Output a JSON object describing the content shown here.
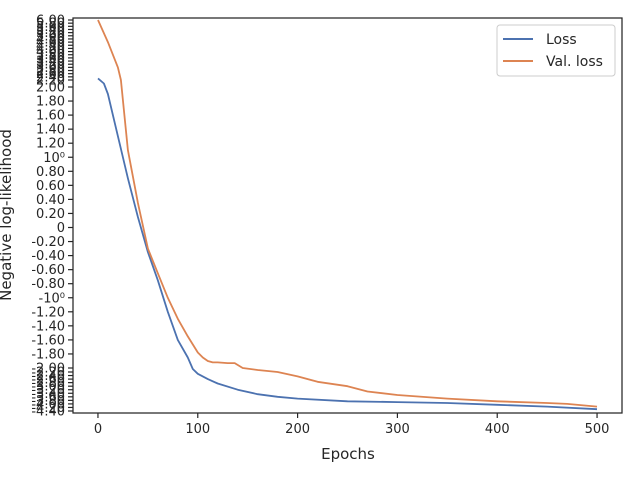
{
  "chart_data": {
    "type": "line",
    "xlabel": "Epochs",
    "ylabel": "Negative log-likelihood",
    "xlim": [
      -25,
      525
    ],
    "xticks": [
      0,
      100,
      200,
      300,
      400,
      500
    ],
    "yscale": "symlog",
    "legend_position": "top-right",
    "grid": false,
    "y_tick_labels_linear": [
      "2.00",
      "1.80",
      "1.60",
      "1.40",
      "1.20",
      "10⁰",
      "0.80",
      "0.60",
      "0.40",
      "0.20",
      "0",
      "-0.20",
      "-0.40",
      "-0.60",
      "-0.80",
      "-10⁰",
      "-1.20",
      "-1.40",
      "-1.60",
      "-1.80",
      "-2.00"
    ],
    "y_tick_labels_upper": [
      "6.00",
      "5.80",
      "5.60",
      "5.40",
      "5.20",
      "5.00",
      "4.80",
      "4.60",
      "4.40",
      "4.20",
      "4.00",
      "3.80",
      "3.60",
      "3.40",
      "3.20",
      "3.00",
      "2.80",
      "2.60",
      "2.40",
      "2.20"
    ],
    "y_tick_labels_lower": [
      "-2.20",
      "-2.40",
      "-2.60",
      "-2.80",
      "-3.00",
      "-3.20",
      "-3.40",
      "-3.60",
      "-3.80",
      "-4.00",
      "-4.20",
      "-4.40"
    ],
    "series": [
      {
        "name": "Loss",
        "color": "#4c72b0",
        "x": [
          0,
          6,
          10,
          20,
          30,
          40,
          50,
          60,
          70,
          80,
          90,
          95,
          100,
          110,
          120,
          140,
          160,
          180,
          200,
          250,
          300,
          350,
          400,
          450,
          500
        ],
        "y": [
          2.3,
          2.1,
          1.9,
          1.3,
          0.7,
          0.15,
          -0.35,
          -0.75,
          -1.2,
          -1.6,
          -1.85,
          -2.05,
          -2.3,
          -2.6,
          -2.85,
          -3.2,
          -3.45,
          -3.6,
          -3.7,
          -3.85,
          -3.9,
          -3.95,
          -4.05,
          -4.15,
          -4.3
        ]
      },
      {
        "name": "Val. loss",
        "color": "#dd8452",
        "x": [
          0,
          10,
          20,
          23,
          30,
          40,
          50,
          60,
          70,
          80,
          90,
          100,
          105,
          110,
          115,
          120,
          130,
          137,
          145,
          160,
          180,
          200,
          220,
          250,
          270,
          300,
          350,
          400,
          450,
          470,
          500
        ],
        "y": [
          6.0,
          4.6,
          3.0,
          2.2,
          1.1,
          0.35,
          -0.3,
          -0.65,
          -1.0,
          -1.3,
          -1.55,
          -1.78,
          -1.85,
          -1.9,
          -1.92,
          -1.92,
          -1.93,
          -1.93,
          -2.0,
          -2.1,
          -2.2,
          -2.45,
          -2.75,
          -3.0,
          -3.3,
          -3.5,
          -3.7,
          -3.85,
          -3.95,
          -4.0,
          -4.15
        ]
      }
    ]
  }
}
